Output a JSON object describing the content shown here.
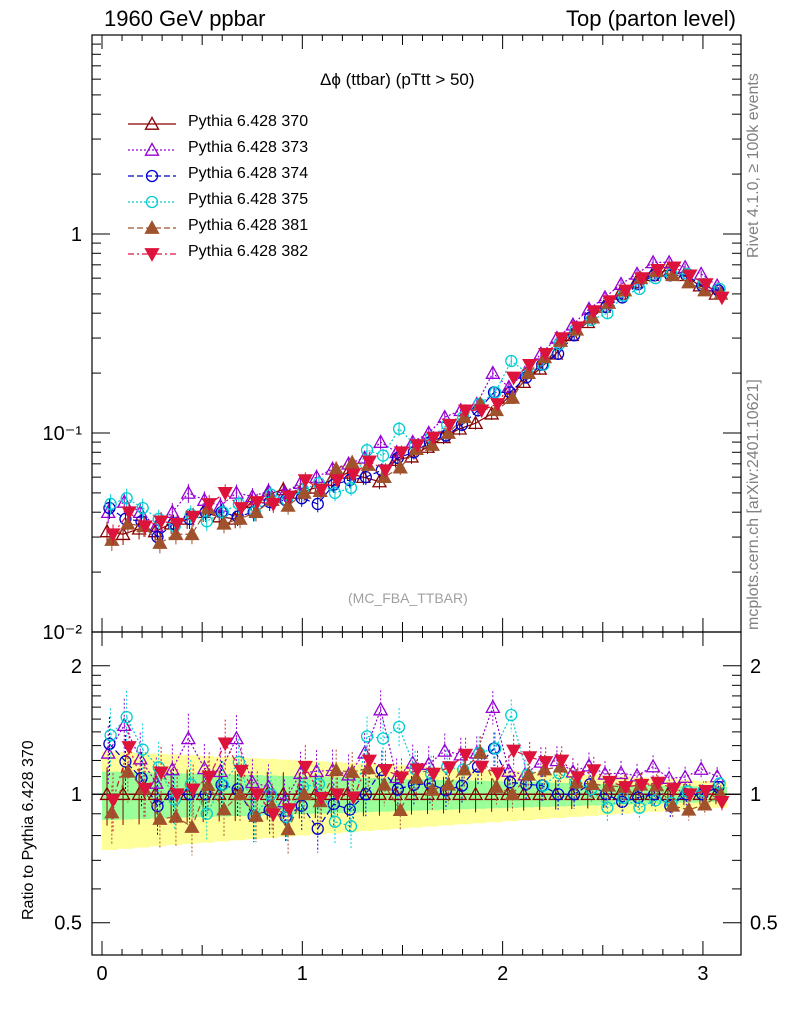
{
  "header": {
    "left": "1960 GeV ppbar",
    "right": "Top (parton level)"
  },
  "side_labels": {
    "rivet": "Rivet 4.1.0, ≥ 100k events",
    "mcplots": "mcplots.cern.ch [arXiv:2401.10621]"
  },
  "chart_data": {
    "type": "line",
    "title": "Δϕ (ttbar) (pTtt > 50)",
    "analysis": "(MC_FBA_TTBAR)",
    "xlabel": "",
    "ylabel": "",
    "ratio_ylabel": "Ratio to Pythia 6.428 370",
    "xlim": [
      -0.05,
      3.19
    ],
    "ylim": [
      0.01,
      10
    ],
    "yscale": "log",
    "ratio_ylim": [
      0.42,
      2.4
    ],
    "x_ticks": [
      "0",
      "1",
      "2",
      "3"
    ],
    "y_ticks_main": [
      "1",
      "10⁻¹",
      "10⁻²"
    ],
    "y_ticks_ratio": [
      "2",
      "1",
      "0.5"
    ],
    "legend_position": "top-left",
    "x": [
      0.04,
      0.12,
      0.2,
      0.28,
      0.36,
      0.44,
      0.52,
      0.6,
      0.68,
      0.76,
      0.84,
      0.92,
      1.0,
      1.08,
      1.16,
      1.24,
      1.32,
      1.4,
      1.48,
      1.56,
      1.64,
      1.72,
      1.8,
      1.88,
      1.96,
      2.04,
      2.12,
      2.2,
      2.28,
      2.36,
      2.44,
      2.52,
      2.6,
      2.68,
      2.76,
      2.84,
      2.92,
      3.0,
      3.08
    ],
    "series": [
      {
        "name": "Pythia 6.428 370",
        "color": "#8b0000",
        "marker": "triangle-open",
        "values": [
          0.032,
          0.031,
          0.033,
          0.032,
          0.035,
          0.037,
          0.04,
          0.038,
          0.037,
          0.045,
          0.049,
          0.052,
          0.05,
          0.053,
          0.058,
          0.063,
          0.06,
          0.057,
          0.073,
          0.076,
          0.085,
          0.095,
          0.105,
          0.112,
          0.125,
          0.15,
          0.18,
          0.21,
          0.25,
          0.31,
          0.36,
          0.43,
          0.5,
          0.57,
          0.62,
          0.66,
          0.62,
          0.55,
          0.5
        ]
      },
      {
        "name": "Pythia 6.428 373",
        "color": "#9400d3",
        "marker": "triangle-open",
        "values": [
          0.04,
          0.045,
          0.04,
          0.034,
          0.04,
          0.05,
          0.046,
          0.043,
          0.05,
          0.048,
          0.051,
          0.05,
          0.056,
          0.06,
          0.066,
          0.07,
          0.075,
          0.09,
          0.08,
          0.09,
          0.1,
          0.12,
          0.13,
          0.14,
          0.2,
          0.17,
          0.2,
          0.25,
          0.3,
          0.35,
          0.42,
          0.48,
          0.56,
          0.63,
          0.72,
          0.72,
          0.68,
          0.63,
          0.55
        ]
      },
      {
        "name": "Pythia 6.428 374",
        "color": "#0000cd",
        "marker": "circle-open",
        "values": [
          0.042,
          0.037,
          0.036,
          0.03,
          0.035,
          0.037,
          0.04,
          0.04,
          0.038,
          0.04,
          0.045,
          0.046,
          0.047,
          0.044,
          0.055,
          0.058,
          0.06,
          0.065,
          0.075,
          0.08,
          0.09,
          0.097,
          0.11,
          0.13,
          0.16,
          0.16,
          0.19,
          0.22,
          0.25,
          0.31,
          0.38,
          0.43,
          0.48,
          0.56,
          0.62,
          0.62,
          0.62,
          0.55,
          0.52
        ]
      },
      {
        "name": "Pythia 6.428 375",
        "color": "#00ced1",
        "marker": "circle-open",
        "values": [
          0.044,
          0.047,
          0.042,
          0.037,
          0.034,
          0.039,
          0.036,
          0.04,
          0.044,
          0.04,
          0.049,
          0.046,
          0.052,
          0.056,
          0.05,
          0.053,
          0.082,
          0.077,
          0.105,
          0.087,
          0.095,
          0.11,
          0.12,
          0.14,
          0.16,
          0.23,
          0.2,
          0.22,
          0.28,
          0.33,
          0.37,
          0.4,
          0.49,
          0.53,
          0.6,
          0.63,
          0.63,
          0.56,
          0.53
        ]
      },
      {
        "name": "Pythia 6.428 381",
        "color": "#a0522d",
        "marker": "triangle-filled",
        "values": [
          0.029,
          0.035,
          0.034,
          0.028,
          0.031,
          0.031,
          0.042,
          0.035,
          0.037,
          0.04,
          0.046,
          0.043,
          0.05,
          0.051,
          0.066,
          0.071,
          0.069,
          0.06,
          0.067,
          0.083,
          0.087,
          0.1,
          0.12,
          0.14,
          0.13,
          0.15,
          0.2,
          0.24,
          0.29,
          0.33,
          0.38,
          0.45,
          0.52,
          0.6,
          0.65,
          0.62,
          0.57,
          0.52,
          0.5
        ]
      },
      {
        "name": "Pythia 6.428 382",
        "color": "#dc143c",
        "marker": "triangle-down-filled",
        "values": [
          0.031,
          0.04,
          0.034,
          0.036,
          0.035,
          0.038,
          0.044,
          0.05,
          0.042,
          0.045,
          0.044,
          0.048,
          0.058,
          0.052,
          0.058,
          0.062,
          0.072,
          0.065,
          0.08,
          0.087,
          0.095,
          0.11,
          0.13,
          0.13,
          0.14,
          0.19,
          0.22,
          0.25,
          0.3,
          0.34,
          0.41,
          0.46,
          0.52,
          0.6,
          0.66,
          0.68,
          0.62,
          0.56,
          0.48
        ]
      }
    ]
  }
}
